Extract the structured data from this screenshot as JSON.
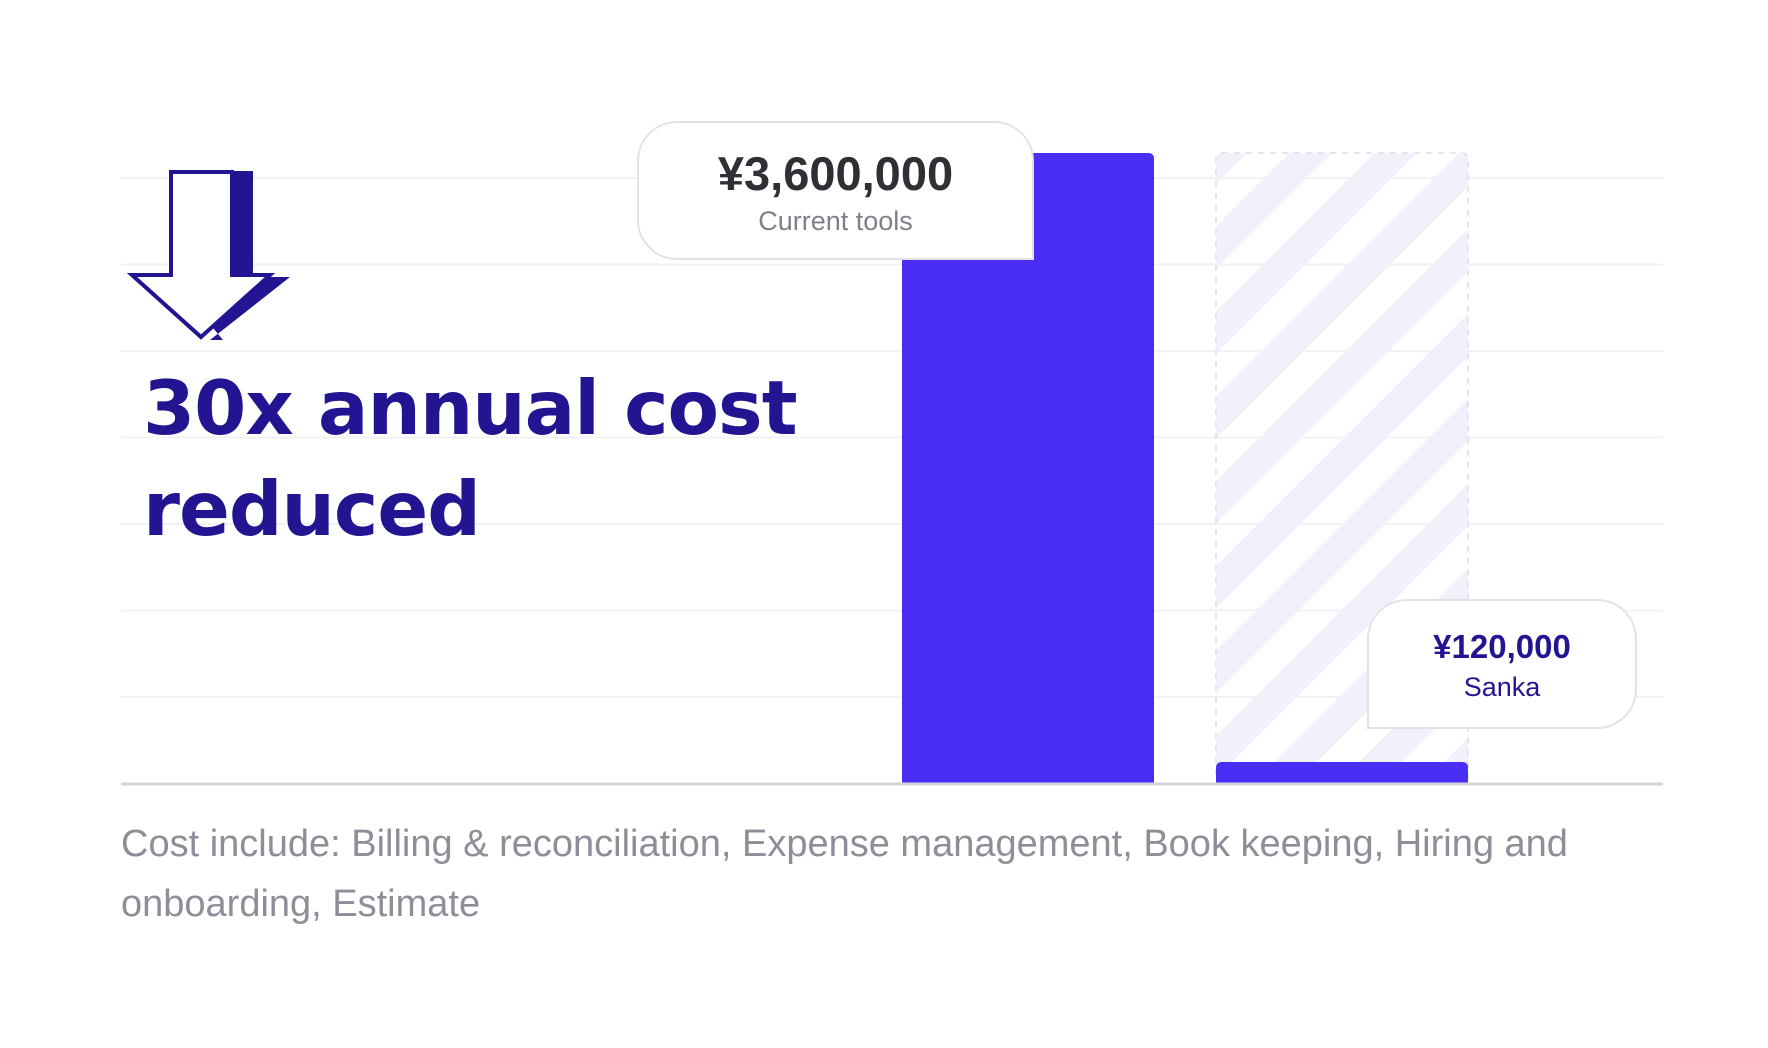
{
  "headline": "30x annual cost reduced",
  "footnote": "Cost include: Billing & reconciliation, Expense management, Book keeping, Hiring and onboarding, Estimate",
  "colors": {
    "accent": "#4b2ef5",
    "headline": "#231591",
    "stripe": "#f1f1fb",
    "grid": "#f2f2f4",
    "axis": "#d4d4d8"
  },
  "icons": {
    "arrow": "down-arrow-icon"
  },
  "chart_data": {
    "type": "bar",
    "categories": [
      "Current tools",
      "Sanka"
    ],
    "values": [
      3600000,
      120000
    ],
    "value_labels": [
      "¥3,600,000",
      "¥120,000"
    ],
    "ylim": [
      0,
      3600000
    ],
    "grid": true,
    "title": "",
    "xlabel": "",
    "ylabel": ""
  }
}
